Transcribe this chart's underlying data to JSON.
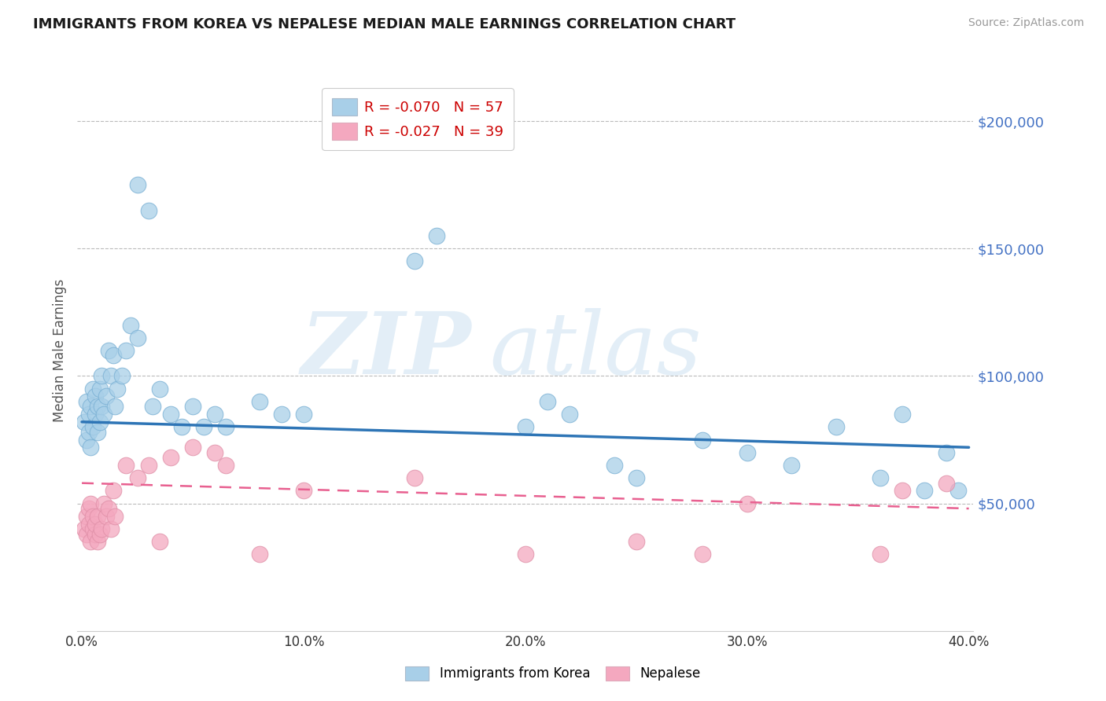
{
  "title": "IMMIGRANTS FROM KOREA VS NEPALESE MEDIAN MALE EARNINGS CORRELATION CHART",
  "source": "Source: ZipAtlas.com",
  "ylabel": "Median Male Earnings",
  "xlim": [
    -0.002,
    0.402
  ],
  "ylim": [
    0,
    220000
  ],
  "yticks": [
    50000,
    100000,
    150000,
    200000
  ],
  "ytick_labels": [
    "$50,000",
    "$100,000",
    "$150,000",
    "$200,000"
  ],
  "xticks": [
    0.0,
    0.1,
    0.2,
    0.3,
    0.4
  ],
  "xtick_labels": [
    "0.0%",
    "10.0%",
    "20.0%",
    "30.0%",
    "40.0%"
  ],
  "korea_R": -0.07,
  "korea_N": 57,
  "nepal_R": -0.027,
  "nepal_N": 39,
  "korea_color": "#a8cfe8",
  "nepal_color": "#f4a8bf",
  "korea_line_color": "#2e75b6",
  "nepal_line_color": "#e86090",
  "background_color": "#ffffff",
  "grid_color": "#bbbbbb",
  "korea_x": [
    0.001,
    0.002,
    0.002,
    0.003,
    0.003,
    0.004,
    0.004,
    0.005,
    0.005,
    0.006,
    0.006,
    0.007,
    0.007,
    0.008,
    0.008,
    0.009,
    0.009,
    0.01,
    0.011,
    0.012,
    0.013,
    0.014,
    0.015,
    0.016,
    0.018,
    0.02,
    0.022,
    0.025,
    0.025,
    0.03,
    0.032,
    0.035,
    0.04,
    0.045,
    0.05,
    0.055,
    0.06,
    0.065,
    0.08,
    0.09,
    0.1,
    0.15,
    0.16,
    0.2,
    0.21,
    0.22,
    0.24,
    0.25,
    0.28,
    0.3,
    0.32,
    0.34,
    0.36,
    0.37,
    0.38,
    0.39,
    0.395
  ],
  "korea_y": [
    82000,
    75000,
    90000,
    78000,
    85000,
    72000,
    88000,
    80000,
    95000,
    85000,
    92000,
    78000,
    88000,
    82000,
    95000,
    100000,
    88000,
    85000,
    92000,
    110000,
    100000,
    108000,
    88000,
    95000,
    100000,
    110000,
    120000,
    115000,
    175000,
    165000,
    88000,
    95000,
    85000,
    80000,
    88000,
    80000,
    85000,
    80000,
    90000,
    85000,
    85000,
    145000,
    155000,
    80000,
    90000,
    85000,
    65000,
    60000,
    75000,
    70000,
    65000,
    80000,
    60000,
    85000,
    55000,
    70000,
    55000
  ],
  "nepal_x": [
    0.001,
    0.002,
    0.002,
    0.003,
    0.003,
    0.004,
    0.004,
    0.005,
    0.005,
    0.006,
    0.006,
    0.007,
    0.007,
    0.008,
    0.009,
    0.01,
    0.011,
    0.012,
    0.013,
    0.014,
    0.015,
    0.02,
    0.025,
    0.03,
    0.035,
    0.04,
    0.05,
    0.06,
    0.065,
    0.08,
    0.1,
    0.15,
    0.2,
    0.25,
    0.28,
    0.3,
    0.36,
    0.37,
    0.39
  ],
  "nepal_y": [
    40000,
    38000,
    45000,
    42000,
    48000,
    35000,
    50000,
    40000,
    45000,
    38000,
    42000,
    35000,
    45000,
    38000,
    40000,
    50000,
    45000,
    48000,
    40000,
    55000,
    45000,
    65000,
    60000,
    65000,
    35000,
    68000,
    72000,
    70000,
    65000,
    30000,
    55000,
    60000,
    30000,
    35000,
    30000,
    50000,
    30000,
    55000,
    58000
  ]
}
